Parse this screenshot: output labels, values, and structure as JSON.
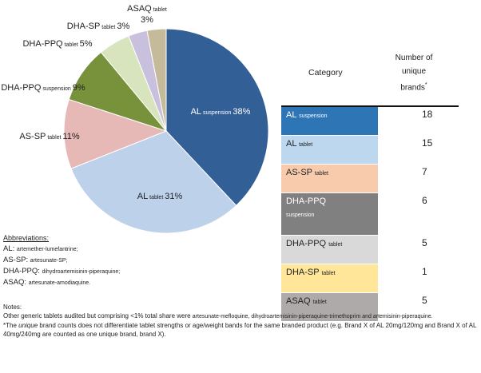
{
  "chart_data": {
    "type": "pie",
    "slices": [
      {
        "main": "AL",
        "sub": "suspension",
        "value": 38,
        "label": "38%",
        "color": "#335f97"
      },
      {
        "main": "AL",
        "sub": "tablet",
        "value": 31,
        "label": "31%",
        "color": "#bdd1eb"
      },
      {
        "main": "AS-SP",
        "sub": "tablet",
        "value": 11,
        "label": "11%",
        "color": "#e6b8b6"
      },
      {
        "main": "DHA-PPQ",
        "sub": "suspension",
        "value": 9,
        "label": "9%",
        "color": "#77923b"
      },
      {
        "main": "DHA-PPQ",
        "sub": "tablet",
        "value": 5,
        "label": "5%",
        "color": "#d8e4bd"
      },
      {
        "main": "DHA-SP",
        "sub": "tablet",
        "value": 3,
        "label": "3%",
        "color": "#c9c0dd"
      },
      {
        "main": "ASAQ",
        "sub": "tablet",
        "value": 3,
        "label": "3%",
        "color": "#c5bb9a"
      }
    ]
  },
  "table": {
    "header_category": "Category",
    "header_number": [
      "Number of",
      "unique",
      "brands"
    ],
    "footnote_mark": "*",
    "rows": [
      {
        "main": "AL",
        "sub": "suspension",
        "count": "18",
        "color": "#2e75b6",
        "text_color": "#ffffff"
      },
      {
        "main": "AL",
        "sub": "tablet",
        "count": "15",
        "color": "#bdd7ee",
        "text_color": "#222222"
      },
      {
        "main": "AS-SP",
        "sub": "tablet",
        "count": "7",
        "color": "#f8cbad",
        "text_color": "#222222"
      },
      {
        "main": "DHA-PPQ",
        "sub": "suspension",
        "count": "6",
        "color": "#808080",
        "text_color": "#ffffff"
      },
      {
        "main": "DHA-PPQ",
        "sub": "tablet",
        "count": "5",
        "color": "#d9d9d9",
        "text_color": "#222222"
      },
      {
        "main": "DHA-SP",
        "sub": "tablet",
        "count": "1",
        "color": "#ffe699",
        "text_color": "#222222"
      },
      {
        "main": "ASAQ",
        "sub": "tablet",
        "count": "5",
        "color": "#aeaaaa",
        "text_color": "#222222"
      }
    ]
  },
  "abbreviations": {
    "heading": "Abbreviations:",
    "items": [
      {
        "code": "AL:",
        "name": "artemether-lumefantrine;"
      },
      {
        "code": "AS-SP:",
        "name": "artesunate-SP;"
      },
      {
        "code": "DHA-PPQ:",
        "name": "dihydroartemisinin-piperaquine;"
      },
      {
        "code": "ASAQ:",
        "name": "artesunate-amodiaquine."
      }
    ]
  },
  "notes": {
    "heading": "Notes:",
    "line1_a": "Other generic tablets audited but comprising <1% total share were ",
    "line1_b": "artesunate-mefloquine, dihydroartemisinin-piperaquine-trimethoprim and artemisinin-piperaquine.",
    "line2_a": "*The ",
    "line2_em": "unique",
    "line2_b": " brand counts does not differentiate tablet strengths or age/weight bands for the same branded product (e.g. Brand X of AL 20mg/120mg and Brand X of AL 40mg/240mg are counted as one unique brand, brand X)."
  }
}
